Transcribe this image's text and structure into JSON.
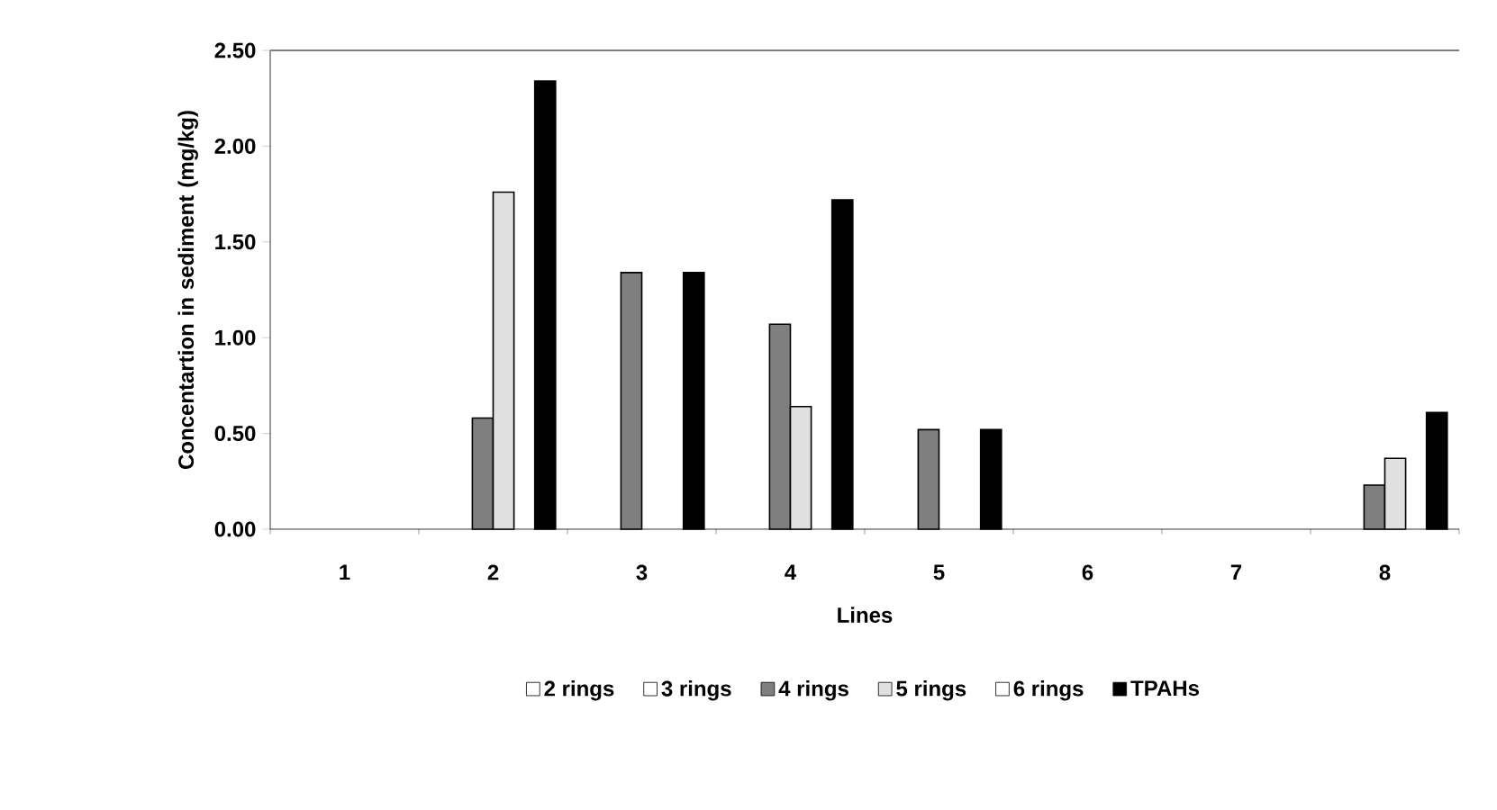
{
  "chart_data": {
    "type": "bar",
    "xlabel": "Lines",
    "ylabel": "Concentartion in sediment (mg/kg)",
    "categories": [
      "1",
      "2",
      "3",
      "4",
      "5",
      "6",
      "7",
      "8"
    ],
    "series": [
      {
        "name": "2 rings",
        "color": "#ffffff",
        "values": [
          null,
          null,
          null,
          null,
          null,
          null,
          null,
          null
        ]
      },
      {
        "name": "3 rings",
        "color": "#ffffff",
        "values": [
          null,
          null,
          null,
          null,
          null,
          null,
          null,
          null
        ]
      },
      {
        "name": "4 rings",
        "color": "#7f7f7f",
        "values": [
          null,
          0.58,
          1.34,
          1.07,
          0.52,
          null,
          null,
          0.23
        ]
      },
      {
        "name": "5 rings",
        "color": "#e0e0e0",
        "values": [
          null,
          1.76,
          null,
          0.64,
          null,
          null,
          null,
          0.37
        ]
      },
      {
        "name": "6 rings",
        "color": "#ffffff",
        "values": [
          null,
          null,
          null,
          null,
          null,
          null,
          null,
          null
        ]
      },
      {
        "name": "TPAHs",
        "color": "#000000",
        "values": [
          null,
          2.34,
          1.34,
          1.72,
          0.52,
          null,
          null,
          0.61
        ]
      }
    ],
    "ylim": [
      0,
      2.5
    ],
    "yticks": [
      {
        "value": 0,
        "label": "0.00"
      },
      {
        "value": 0.5,
        "label": "0.50"
      },
      {
        "value": 1,
        "label": "1.00"
      },
      {
        "value": 1.5,
        "label": "1.50"
      },
      {
        "value": 2,
        "label": "2.00"
      },
      {
        "value": 2.5,
        "label": "2.50"
      }
    ],
    "grid": false,
    "legend": "bottom"
  }
}
